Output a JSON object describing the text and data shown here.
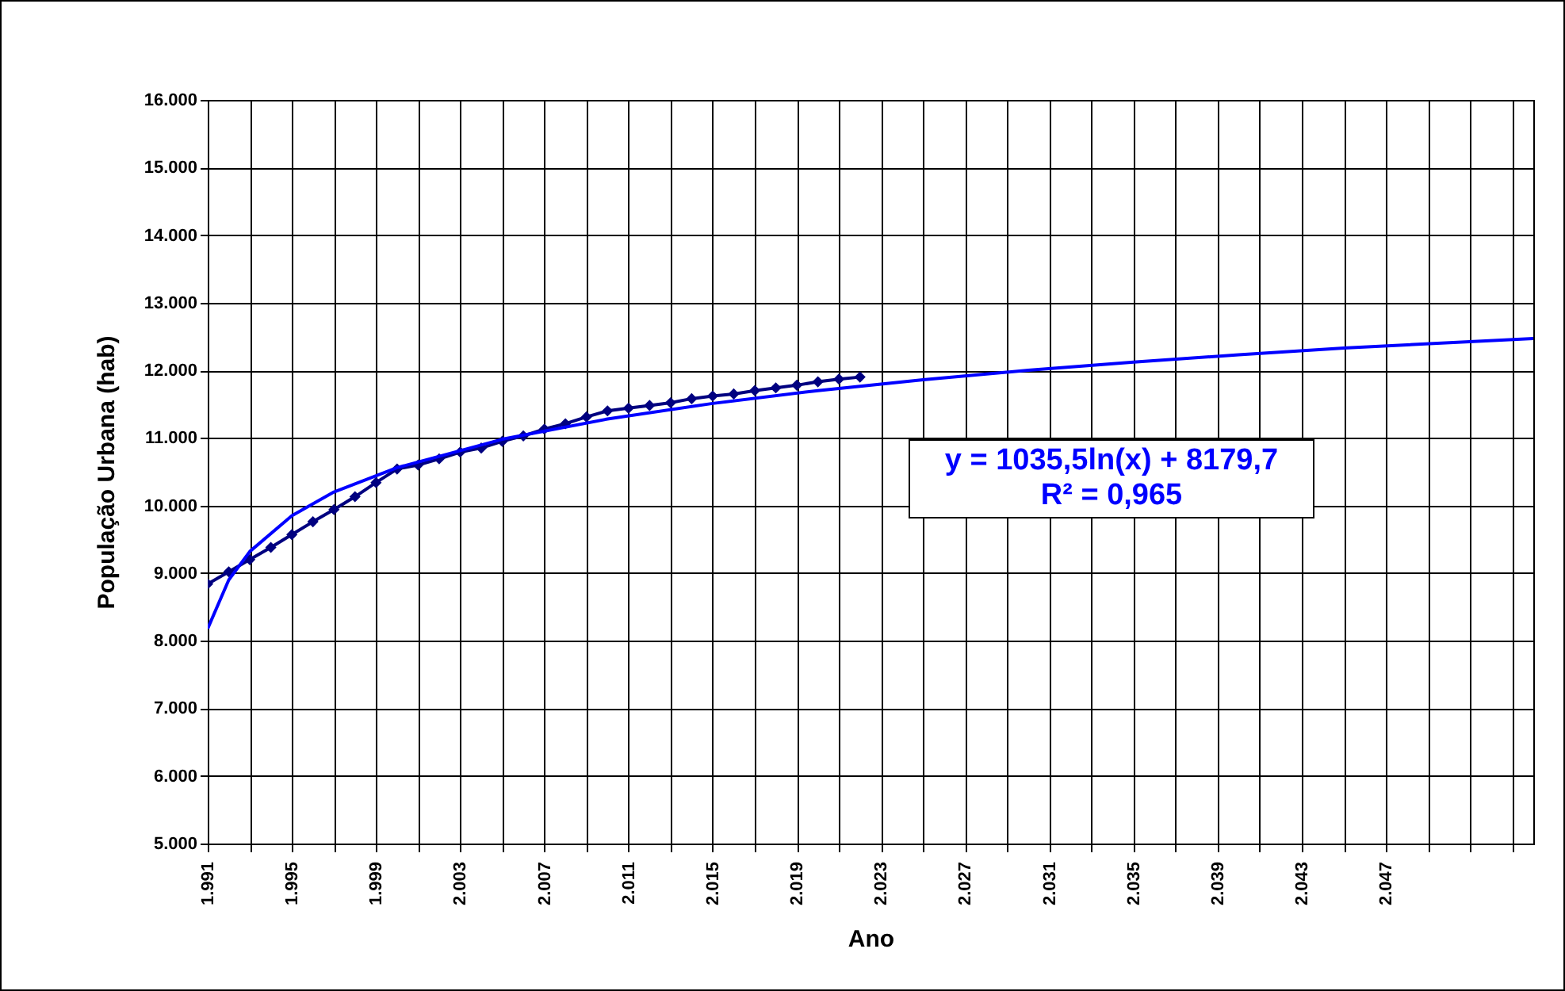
{
  "chart_data": {
    "type": "line",
    "xlabel": "Ano",
    "ylabel": "População Urbana (hab)",
    "marker": "diamond",
    "grid": true,
    "xlim": [
      1991,
      2054
    ],
    "xticks": [
      {
        "value": 1991,
        "label": "1.991"
      },
      {
        "value": 1993,
        "label": null
      },
      {
        "value": 1995,
        "label": "1.995"
      },
      {
        "value": 1997,
        "label": null
      },
      {
        "value": 1999,
        "label": "1.999"
      },
      {
        "value": 2001,
        "label": null
      },
      {
        "value": 2003,
        "label": "2.003"
      },
      {
        "value": 2005,
        "label": null
      },
      {
        "value": 2007,
        "label": "2.007"
      },
      {
        "value": 2009,
        "label": null
      },
      {
        "value": 2011,
        "label": "2.011"
      },
      {
        "value": 2013,
        "label": null
      },
      {
        "value": 2015,
        "label": "2.015"
      },
      {
        "value": 2017,
        "label": null
      },
      {
        "value": 2019,
        "label": "2.019"
      },
      {
        "value": 2021,
        "label": null
      },
      {
        "value": 2023,
        "label": "2.023"
      },
      {
        "value": 2025,
        "label": null
      },
      {
        "value": 2027,
        "label": "2.027"
      },
      {
        "value": 2029,
        "label": null
      },
      {
        "value": 2031,
        "label": "2.031"
      },
      {
        "value": 2033,
        "label": null
      },
      {
        "value": 2035,
        "label": "2.035"
      },
      {
        "value": 2037,
        "label": null
      },
      {
        "value": 2039,
        "label": "2.039"
      },
      {
        "value": 2041,
        "label": null
      },
      {
        "value": 2043,
        "label": "2.043"
      },
      {
        "value": 2045,
        "label": null
      },
      {
        "value": 2047,
        "label": "2.047"
      },
      {
        "value": 2049,
        "label": null
      },
      {
        "value": 2051,
        "label": null
      },
      {
        "value": 2053,
        "label": null
      }
    ],
    "ylim": [
      5000,
      16000
    ],
    "yticks": [
      {
        "value": 5000,
        "label": "5.000"
      },
      {
        "value": 6000,
        "label": "6.000"
      },
      {
        "value": 7000,
        "label": "7.000"
      },
      {
        "value": 8000,
        "label": "8.000"
      },
      {
        "value": 9000,
        "label": "9.000"
      },
      {
        "value": 10000,
        "label": "10.000"
      },
      {
        "value": 11000,
        "label": "11.000"
      },
      {
        "value": 12000,
        "label": "12.000"
      },
      {
        "value": 13000,
        "label": "13.000"
      },
      {
        "value": 14000,
        "label": "14.000"
      },
      {
        "value": 15000,
        "label": "15.000"
      },
      {
        "value": 16000,
        "label": "16.000"
      }
    ],
    "series": [
      {
        "color": "#000080",
        "x": [
          1991,
          1992,
          1993,
          1994,
          1995,
          1996,
          1997,
          1998,
          1999,
          2000,
          2001,
          2002,
          2003,
          2004,
          2005,
          2006,
          2007,
          2008,
          2009,
          2010,
          2011,
          2012,
          2013,
          2014,
          2015,
          2016,
          2017,
          2018,
          2019,
          2020,
          2021,
          2022
        ],
        "values": [
          8840,
          9020,
          9200,
          9380,
          9570,
          9760,
          9940,
          10130,
          10340,
          10540,
          10600,
          10690,
          10790,
          10850,
          10950,
          11030,
          11130,
          11210,
          11310,
          11400,
          11440,
          11480,
          11520,
          11580,
          11620,
          11650,
          11700,
          11740,
          11780,
          11830,
          11870,
          11900
        ]
      },
      {
        "type": "line",
        "marker": "none",
        "color": "#0000ff",
        "x": [
          1991,
          1992,
          1993,
          1995,
          1997,
          2000,
          2005,
          2010,
          2015,
          2020,
          2025,
          2030,
          2035,
          2040,
          2045,
          2054
        ],
        "values": [
          8180,
          8900,
          9320,
          9850,
          10200,
          10560,
          10980,
          11280,
          11510,
          11700,
          11860,
          12000,
          12120,
          12230,
          12330,
          12470
        ]
      }
    ],
    "annotations": [
      "y = 1035,5ln(x) + 8179,7",
      "R² = 0,965"
    ]
  }
}
